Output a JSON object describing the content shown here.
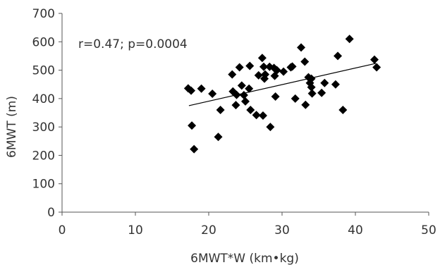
{
  "chart_data": {
    "type": "scatter",
    "xlabel": "6MWT*W (km•kg)",
    "ylabel": "6MWT (m)",
    "annotation": "r=0.47; p=0.0004",
    "xlim": [
      0,
      50
    ],
    "ylim": [
      0,
      700
    ],
    "xticks": [
      0,
      10,
      20,
      30,
      40,
      50
    ],
    "yticks": [
      0,
      100,
      200,
      300,
      400,
      500,
      600,
      700
    ],
    "grid": false,
    "marker": "diamond",
    "marker_color": "#000000",
    "trendline": {
      "x": [
        17.3,
        42.8
      ],
      "y": [
        375,
        524
      ],
      "color": "#000000"
    },
    "points": [
      {
        "x": 17.2,
        "y": 436
      },
      {
        "x": 17.6,
        "y": 428
      },
      {
        "x": 17.7,
        "y": 305
      },
      {
        "x": 18.0,
        "y": 222
      },
      {
        "x": 19.0,
        "y": 435
      },
      {
        "x": 20.5,
        "y": 417
      },
      {
        "x": 21.3,
        "y": 265
      },
      {
        "x": 21.6,
        "y": 360
      },
      {
        "x": 23.2,
        "y": 485
      },
      {
        "x": 23.3,
        "y": 425
      },
      {
        "x": 23.7,
        "y": 377
      },
      {
        "x": 23.8,
        "y": 413
      },
      {
        "x": 24.2,
        "y": 510
      },
      {
        "x": 24.5,
        "y": 446
      },
      {
        "x": 24.8,
        "y": 412
      },
      {
        "x": 25.0,
        "y": 390
      },
      {
        "x": 25.5,
        "y": 435
      },
      {
        "x": 25.6,
        "y": 515
      },
      {
        "x": 25.7,
        "y": 360
      },
      {
        "x": 26.5,
        "y": 342
      },
      {
        "x": 26.8,
        "y": 482
      },
      {
        "x": 27.3,
        "y": 543
      },
      {
        "x": 27.4,
        "y": 340
      },
      {
        "x": 27.5,
        "y": 512
      },
      {
        "x": 27.6,
        "y": 470
      },
      {
        "x": 27.7,
        "y": 485
      },
      {
        "x": 28.3,
        "y": 512
      },
      {
        "x": 28.4,
        "y": 300
      },
      {
        "x": 28.9,
        "y": 508
      },
      {
        "x": 29.0,
        "y": 480
      },
      {
        "x": 29.1,
        "y": 407
      },
      {
        "x": 29.3,
        "y": 500
      },
      {
        "x": 30.2,
        "y": 495
      },
      {
        "x": 31.2,
        "y": 510
      },
      {
        "x": 31.4,
        "y": 513
      },
      {
        "x": 31.8,
        "y": 400
      },
      {
        "x": 32.6,
        "y": 580
      },
      {
        "x": 33.1,
        "y": 530
      },
      {
        "x": 33.2,
        "y": 378
      },
      {
        "x": 33.6,
        "y": 475
      },
      {
        "x": 33.8,
        "y": 455
      },
      {
        "x": 34.0,
        "y": 470
      },
      {
        "x": 34.0,
        "y": 440
      },
      {
        "x": 34.1,
        "y": 418
      },
      {
        "x": 35.4,
        "y": 420
      },
      {
        "x": 35.8,
        "y": 455
      },
      {
        "x": 37.3,
        "y": 450
      },
      {
        "x": 37.6,
        "y": 550
      },
      {
        "x": 38.3,
        "y": 360
      },
      {
        "x": 39.2,
        "y": 610
      },
      {
        "x": 42.6,
        "y": 537
      },
      {
        "x": 42.9,
        "y": 510
      }
    ]
  }
}
